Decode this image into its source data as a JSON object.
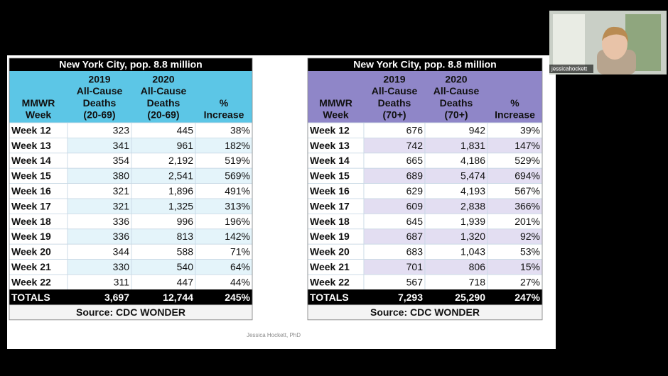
{
  "tables": [
    {
      "title": "New York City, pop. 8.8 million",
      "headers": [
        [
          "MMWR",
          "Week"
        ],
        [
          "2019",
          "All-Cause",
          "Deaths",
          "(20-69)"
        ],
        [
          "2020",
          "All-Cause",
          "Deaths",
          "(20-69)"
        ],
        [
          "%",
          "Increase"
        ]
      ],
      "rows": [
        [
          "Week 12",
          "323",
          "445",
          "38%"
        ],
        [
          "Week 13",
          "341",
          "961",
          "182%"
        ],
        [
          "Week 14",
          "354",
          "2,192",
          "519%"
        ],
        [
          "Week 15",
          "380",
          "2,541",
          "569%"
        ],
        [
          "Week 16",
          "321",
          "1,896",
          "491%"
        ],
        [
          "Week 17",
          "321",
          "1,325",
          "313%"
        ],
        [
          "Week 18",
          "336",
          "996",
          "196%"
        ],
        [
          "Week 19",
          "336",
          "813",
          "142%"
        ],
        [
          "Week 20",
          "344",
          "588",
          "71%"
        ],
        [
          "Week 21",
          "330",
          "540",
          "64%"
        ],
        [
          "Week 22",
          "311",
          "447",
          "44%"
        ]
      ],
      "totals": [
        "TOTALS",
        "3,697",
        "12,744",
        "245%"
      ],
      "source": "Source: CDC WONDER"
    },
    {
      "title": "New York City, pop. 8.8 million",
      "headers": [
        [
          "MMWR",
          "Week"
        ],
        [
          "2019",
          "All-Cause",
          "Deaths",
          "(70+)"
        ],
        [
          "2020",
          "All-Cause",
          "Deaths",
          "(70+)"
        ],
        [
          "%",
          "Increase"
        ]
      ],
      "rows": [
        [
          "Week 12",
          "676",
          "942",
          "39%"
        ],
        [
          "Week 13",
          "742",
          "1,831",
          "147%"
        ],
        [
          "Week 14",
          "665",
          "4,186",
          "529%"
        ],
        [
          "Week 15",
          "689",
          "5,474",
          "694%"
        ],
        [
          "Week 16",
          "629",
          "4,193",
          "567%"
        ],
        [
          "Week 17",
          "609",
          "2,838",
          "366%"
        ],
        [
          "Week 18",
          "645",
          "1,939",
          "201%"
        ],
        [
          "Week 19",
          "687",
          "1,320",
          "92%"
        ],
        [
          "Week 20",
          "683",
          "1,043",
          "53%"
        ],
        [
          "Week 21",
          "701",
          "806",
          "15%"
        ],
        [
          "Week 22",
          "567",
          "718",
          "27%"
        ]
      ],
      "totals": [
        "TOTALS",
        "7,293",
        "25,290",
        "247%"
      ],
      "source": "Source: CDC WONDER"
    }
  ],
  "footer": "Jessica Hockett, PhD",
  "participant": "jessicahockett"
}
